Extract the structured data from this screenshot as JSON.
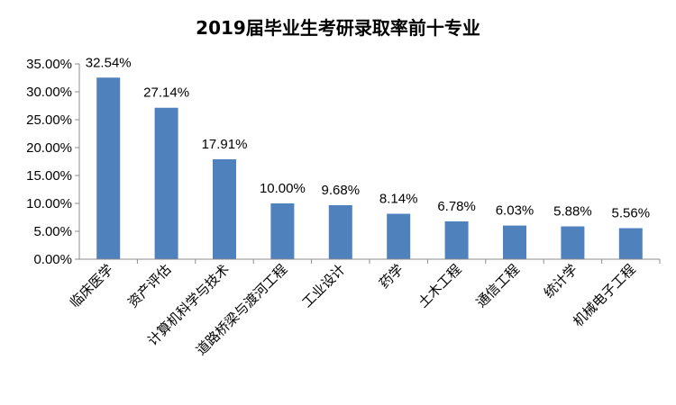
{
  "chart_data": {
    "type": "bar",
    "title": "2019届毕业生考研录取率前十专业",
    "xlabel": "",
    "ylabel": "",
    "categories": [
      "临床医学",
      "资产评估",
      "计算机科学与技术",
      "道路桥梁与渡河工程",
      "工业设计",
      "药学",
      "土木工程",
      "通信工程",
      "统计学",
      "机械电子工程"
    ],
    "values": [
      32.54,
      27.14,
      17.91,
      10.0,
      9.68,
      8.14,
      6.78,
      6.03,
      5.88,
      5.56
    ],
    "data_labels": [
      "32.54%",
      "27.14%",
      "17.91%",
      "10.00%",
      "9.68%",
      "8.14%",
      "6.78%",
      "6.03%",
      "5.88%",
      "5.56%"
    ],
    "yticks": [
      0,
      5,
      10,
      15,
      20,
      25,
      30,
      35
    ],
    "ytick_labels": [
      "0.00%",
      "5.00%",
      "10.00%",
      "15.00%",
      "20.00%",
      "25.00%",
      "30.00%",
      "35.00%"
    ],
    "ylim": [
      0,
      35
    ],
    "grid": false,
    "legend": "none",
    "bar_color": "#4f81bd"
  }
}
